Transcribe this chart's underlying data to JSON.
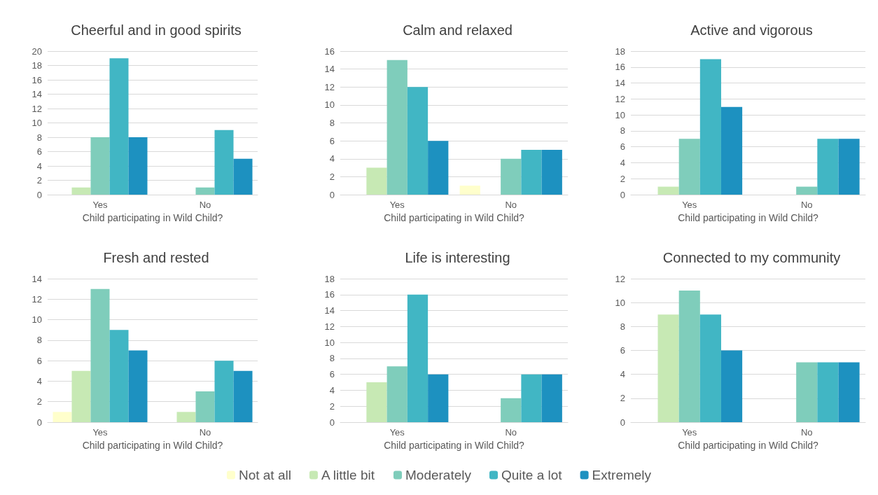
{
  "chart_data": [
    {
      "type": "bar",
      "title": "Cheerful and in good spirits",
      "xlabel": "Child participating in Wild Child?",
      "categories": [
        "Yes",
        "No"
      ],
      "ylim": [
        0,
        20
      ],
      "yticks": [
        0,
        2,
        4,
        6,
        8,
        10,
        12,
        14,
        16,
        18,
        20
      ],
      "grid": "y",
      "legend": "bottom",
      "series": [
        {
          "name": "Not at all",
          "color": "#ffffcc",
          "values": [
            0,
            0
          ]
        },
        {
          "name": "A little bit",
          "color": "#c7e9b4",
          "values": [
            1,
            0
          ]
        },
        {
          "name": "Moderately",
          "color": "#7fcdbb",
          "values": [
            8,
            1
          ]
        },
        {
          "name": "Quite a lot",
          "color": "#41b6c4",
          "values": [
            19,
            9
          ]
        },
        {
          "name": "Extremely",
          "color": "#1d91c0",
          "values": [
            8,
            5
          ]
        }
      ]
    },
    {
      "type": "bar",
      "title": "Calm and relaxed",
      "xlabel": "Child participating in Wild Child?",
      "categories": [
        "Yes",
        "No"
      ],
      "ylim": [
        0,
        16
      ],
      "yticks": [
        0,
        2,
        4,
        6,
        8,
        10,
        12,
        14,
        16
      ],
      "grid": "y",
      "series": [
        {
          "color": "#ffffcc",
          "values": [
            0,
            1
          ]
        },
        {
          "color": "#c7e9b4",
          "values": [
            3,
            0
          ]
        },
        {
          "color": "#7fcdbb",
          "values": [
            15,
            4
          ]
        },
        {
          "color": "#41b6c4",
          "values": [
            12,
            5
          ]
        },
        {
          "color": "#1d91c0",
          "values": [
            6,
            5
          ]
        }
      ]
    },
    {
      "type": "bar",
      "title": "Active and vigorous",
      "xlabel": "Child participating in Wild Child?",
      "categories": [
        "Yes",
        "No"
      ],
      "ylim": [
        0,
        18
      ],
      "yticks": [
        0,
        2,
        4,
        6,
        8,
        10,
        12,
        14,
        16,
        18
      ],
      "grid": "y",
      "series": [
        {
          "color": "#ffffcc",
          "values": [
            0,
            0
          ]
        },
        {
          "color": "#c7e9b4",
          "values": [
            1,
            0
          ]
        },
        {
          "color": "#7fcdbb",
          "values": [
            7,
            1
          ]
        },
        {
          "color": "#41b6c4",
          "values": [
            17,
            7
          ]
        },
        {
          "color": "#1d91c0",
          "values": [
            11,
            7
          ]
        }
      ]
    },
    {
      "type": "bar",
      "title": "Fresh and rested",
      "xlabel": "Child participating in Wild Child?",
      "categories": [
        "Yes",
        "No"
      ],
      "ylim": [
        0,
        14
      ],
      "yticks": [
        0,
        2,
        4,
        6,
        8,
        10,
        12,
        14
      ],
      "grid": "y",
      "series": [
        {
          "color": "#ffffcc",
          "values": [
            1,
            0
          ]
        },
        {
          "color": "#c7e9b4",
          "values": [
            5,
            1
          ]
        },
        {
          "color": "#7fcdbb",
          "values": [
            13,
            3
          ]
        },
        {
          "color": "#41b6c4",
          "values": [
            9,
            6
          ]
        },
        {
          "color": "#1d91c0",
          "values": [
            7,
            5
          ]
        }
      ]
    },
    {
      "type": "bar",
      "title": "Life is interesting",
      "xlabel": "Child participating in Wild Child?",
      "categories": [
        "Yes",
        "No"
      ],
      "ylim": [
        0,
        18
      ],
      "yticks": [
        0,
        2,
        4,
        6,
        8,
        10,
        12,
        14,
        16,
        18
      ],
      "grid": "y",
      "series": [
        {
          "color": "#ffffcc",
          "values": [
            0,
            0
          ]
        },
        {
          "color": "#c7e9b4",
          "values": [
            5,
            0
          ]
        },
        {
          "color": "#7fcdbb",
          "values": [
            7,
            3
          ]
        },
        {
          "color": "#41b6c4",
          "values": [
            16,
            6
          ]
        },
        {
          "color": "#1d91c0",
          "values": [
            6,
            6
          ]
        }
      ]
    },
    {
      "type": "bar",
      "title": "Connected to my community",
      "xlabel": "Child participating in Wild Child?",
      "categories": [
        "Yes",
        "No"
      ],
      "ylim": [
        0,
        12
      ],
      "yticks": [
        0,
        2,
        4,
        6,
        8,
        10,
        12
      ],
      "grid": "y",
      "series": [
        {
          "color": "#ffffcc",
          "values": [
            0,
            0
          ]
        },
        {
          "color": "#c7e9b4",
          "values": [
            9,
            0
          ]
        },
        {
          "color": "#7fcdbb",
          "values": [
            11,
            5
          ]
        },
        {
          "color": "#41b6c4",
          "values": [
            9,
            5
          ]
        },
        {
          "color": "#1d91c0",
          "values": [
            6,
            5
          ]
        }
      ]
    }
  ]
}
